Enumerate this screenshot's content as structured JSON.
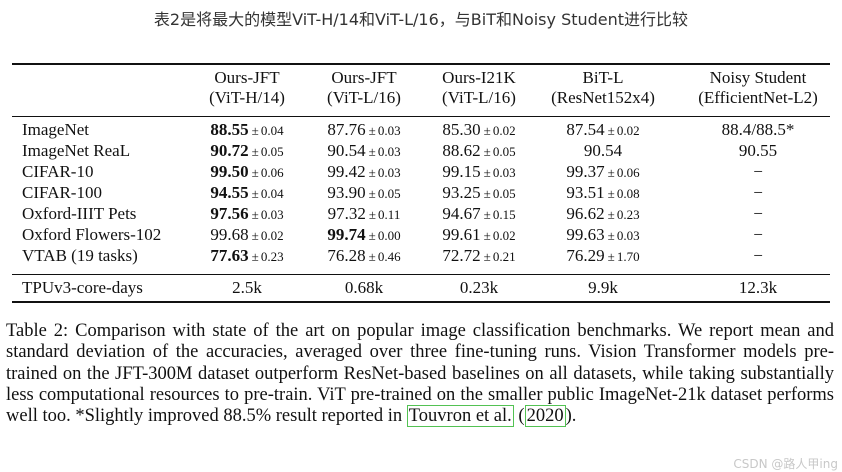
{
  "heading": "表2是将最大的模型ViT-H/14和ViT-L/16，与BiT和Noisy Student进行比较",
  "table": {
    "columns": [
      {
        "line1": "Ours-JFT",
        "line2": "(ViT-H/14)"
      },
      {
        "line1": "Ours-JFT",
        "line2": "(ViT-L/16)"
      },
      {
        "line1": "Ours-I21K",
        "line2": "(ViT-L/16)"
      },
      {
        "line1": "BiT-L",
        "line2": "(ResNet152x4)"
      },
      {
        "line1": "Noisy Student",
        "line2": "(EfficientNet-L2)"
      }
    ],
    "rows": [
      {
        "label": "ImageNet",
        "cells": [
          {
            "v": "88.55",
            "sd": "0.04",
            "bold": true
          },
          {
            "v": "87.76",
            "sd": "0.03"
          },
          {
            "v": "85.30",
            "sd": "0.02"
          },
          {
            "v": "87.54",
            "sd": "0.02"
          },
          {
            "v": "88.4/88.5*"
          }
        ]
      },
      {
        "label": "ImageNet ReaL",
        "cells": [
          {
            "v": "90.72",
            "sd": "0.05",
            "bold": true
          },
          {
            "v": "90.54",
            "sd": "0.03"
          },
          {
            "v": "88.62",
            "sd": "0.05"
          },
          {
            "v": "90.54"
          },
          {
            "v": "90.55"
          }
        ]
      },
      {
        "label": "CIFAR-10",
        "cells": [
          {
            "v": "99.50",
            "sd": "0.06",
            "bold": true
          },
          {
            "v": "99.42",
            "sd": "0.03"
          },
          {
            "v": "99.15",
            "sd": "0.03"
          },
          {
            "v": "99.37",
            "sd": "0.06"
          },
          {
            "v": "−"
          }
        ]
      },
      {
        "label": "CIFAR-100",
        "cells": [
          {
            "v": "94.55",
            "sd": "0.04",
            "bold": true
          },
          {
            "v": "93.90",
            "sd": "0.05"
          },
          {
            "v": "93.25",
            "sd": "0.05"
          },
          {
            "v": "93.51",
            "sd": "0.08"
          },
          {
            "v": "−"
          }
        ]
      },
      {
        "label": "Oxford-IIIT Pets",
        "cells": [
          {
            "v": "97.56",
            "sd": "0.03",
            "bold": true
          },
          {
            "v": "97.32",
            "sd": "0.11"
          },
          {
            "v": "94.67",
            "sd": "0.15"
          },
          {
            "v": "96.62",
            "sd": "0.23"
          },
          {
            "v": "−"
          }
        ]
      },
      {
        "label": "Oxford Flowers-102",
        "cells": [
          {
            "v": "99.68",
            "sd": "0.02"
          },
          {
            "v": "99.74",
            "sd": "0.00",
            "bold": true
          },
          {
            "v": "99.61",
            "sd": "0.02"
          },
          {
            "v": "99.63",
            "sd": "0.03"
          },
          {
            "v": "−"
          }
        ]
      },
      {
        "label": "VTAB (19 tasks)",
        "cells": [
          {
            "v": "77.63",
            "sd": "0.23",
            "bold": true
          },
          {
            "v": "76.28",
            "sd": "0.46"
          },
          {
            "v": "72.72",
            "sd": "0.21"
          },
          {
            "v": "76.29",
            "sd": "1.70"
          },
          {
            "v": "−"
          }
        ]
      }
    ],
    "footer": {
      "label": "TPUv3-core-days",
      "cells": [
        "2.5k",
        "0.68k",
        "0.23k",
        "9.9k",
        "12.3k"
      ]
    }
  },
  "caption": {
    "part1": "Table 2:   Comparison with state of the art on popular image classification benchmarks.  We report mean and standard deviation of the accuracies, averaged over three fine-tuning runs.  Vision Transformer models pre-trained on the JFT-300M dataset outperform ResNet-based baselines on all datasets, while taking substantially less computational resources to pre-train. ViT pre-trained on the smaller public ImageNet-21k dataset performs well too. *Slightly improved 88.5% result reported in ",
    "cite_author": "Touvron et al.",
    "cite_open": " (",
    "cite_year": "2020",
    "cite_close": ")."
  },
  "watermark": "CSDN @路人甲ing"
}
